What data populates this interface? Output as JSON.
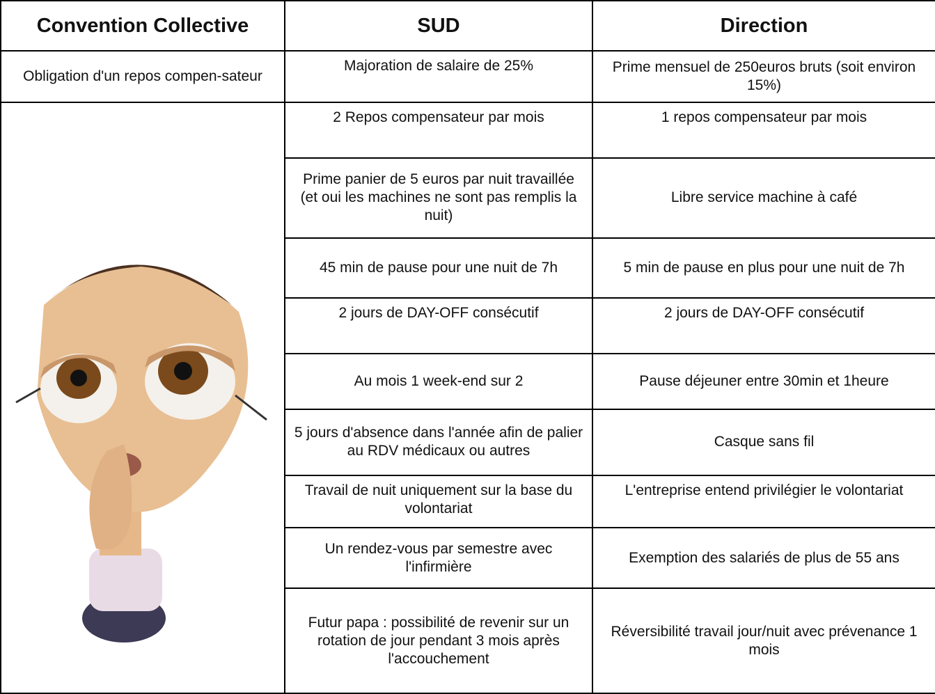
{
  "table": {
    "header": [
      "Convention Collective",
      "SUD",
      "Direction"
    ],
    "first_row": [
      "Obligation d'un repos compen-sateur",
      "Majoration de salaire de 25%",
      "Prime mensuel de 250euros bruts (soit environ 15%)"
    ],
    "rows": [
      [
        "2 Repos compensateur par mois",
        "1 repos compensateur par mois"
      ],
      [
        "Prime panier de 5 euros par nuit travaillée (et oui les machines ne sont pas remplis la nuit)",
        "Libre service machine à café"
      ],
      [
        "45 min de pause pour une nuit de 7h",
        "5 min de pause en plus pour une nuit de 7h"
      ],
      [
        "2 jours de DAY-OFF consécutif",
        "2 jours de DAY-OFF consécutif"
      ],
      [
        "Au mois 1 week-end sur 2",
        "Pause déjeuner entre 30min et 1heure"
      ],
      [
        "5 jours d'absence dans l'année afin de palier au RDV médicaux ou autres",
        "Casque sans fil"
      ],
      [
        "Travail de nuit uniquement sur la base du volontariat",
        "L'entreprise entend privilégier le volontariat"
      ],
      [
        "Un rendez-vous par semestre avec l'infirmière",
        "Exemption des salariés de plus de 55 ans"
      ],
      [
        "Futur papa : possibilité de revenir sur un rotation de jour pendant 3 mois après l'accouchement",
        "Réversibilité travail jour/nuit avec prévenance 1 mois"
      ]
    ]
  }
}
